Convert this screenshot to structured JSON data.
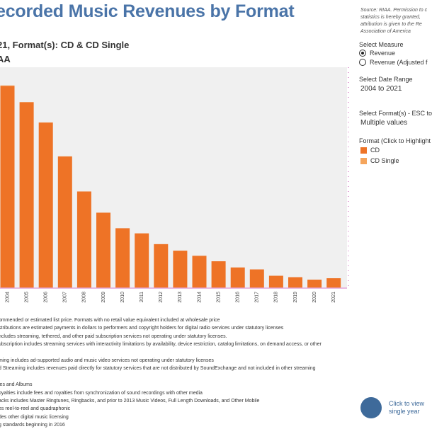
{
  "title": "ecorded Music Revenues by Format",
  "subtitle_1": "21, Format(s): CD & CD Single",
  "subtitle_2": "AA",
  "source_lines": [
    "Source: RIAA. Permission to c",
    "statistics is hereby granted,",
    "attribution is given to the Re",
    "Association of America"
  ],
  "controls": {
    "measure_title": "Select Measure",
    "measure_options": [
      {
        "label": "Revenue",
        "selected": true
      },
      {
        "label": "Revenue (Adjusted f",
        "selected": false
      }
    ],
    "date_title": "Select Date Range",
    "date_value": "2004 to 2021",
    "format_title": "Select Format(s) - ESC to",
    "format_value": "Multiple values",
    "legend_title": "Format (Click to Highlight",
    "legend_items": [
      {
        "label": "CD",
        "color": "#ee7326"
      },
      {
        "label": "CD Single",
        "color": "#f5a55c"
      }
    ]
  },
  "notes": [
    "ommended or estimated list price. Formats with no retail value equivalent included at wholesale price",
    "stributions are estimated payments in dollars to performers and copyright holders for digital radio services under statutory licenses",
    "ncludes streaming, tethered, and other paid subscription services not operating under statutory licenses.",
    "ubscription includes streaming services with interactivity limitations by availability, device restriction, catalog limitations, on demand access, or other",
    "",
    "ming includes ad-supported audio and music video services not operating under statutory licenses",
    "d Streaming includes revenues paid directly for statutory services that are not distributed by SoundExchange and not included in other streaming",
    "",
    "les and Albums",
    "oyalties include fees and royalties from synchronization of sound recordings with other media",
    "acks includes Master Ringtunes, Ringbacks, and prior to 2013 Music Videos, Full Length Downloads, and Other Mobile",
    "es reel-to-reel and quadraphonic",
    "des other digital music licensing",
    "g standards beginning in 2016"
  ],
  "click_view": [
    "Click to view",
    "single year"
  ],
  "chart_data": {
    "type": "bar",
    "categories": [
      "2004",
      "2005",
      "2006",
      "2007",
      "2008",
      "2009",
      "2010",
      "2011",
      "2012",
      "2013",
      "2014",
      "2015",
      "2016",
      "2017",
      "2018",
      "2019",
      "2020",
      "2021"
    ],
    "series": [
      {
        "name": "CD",
        "color": "#ee7326",
        "values": [
          11.45,
          10.52,
          9.37,
          7.45,
          5.47,
          4.27,
          3.39,
          3.1,
          2.49,
          2.12,
          1.83,
          1.52,
          1.17,
          1.06,
          0.7,
          0.62,
          0.48,
          0.56
        ]
      },
      {
        "name": "CD Single",
        "color": "#f5a55c",
        "values": [
          0.02,
          0.01,
          0.01,
          0.01,
          0.0,
          0.0,
          0.0,
          0.0,
          0.0,
          0.0,
          0.0,
          0.0,
          0.0,
          0.0,
          0.0,
          0.0,
          0.0,
          0.0
        ]
      }
    ],
    "ylim": [
      0,
      12.5
    ],
    "legend": "right",
    "grid": false,
    "background": "#f0f0f0"
  }
}
